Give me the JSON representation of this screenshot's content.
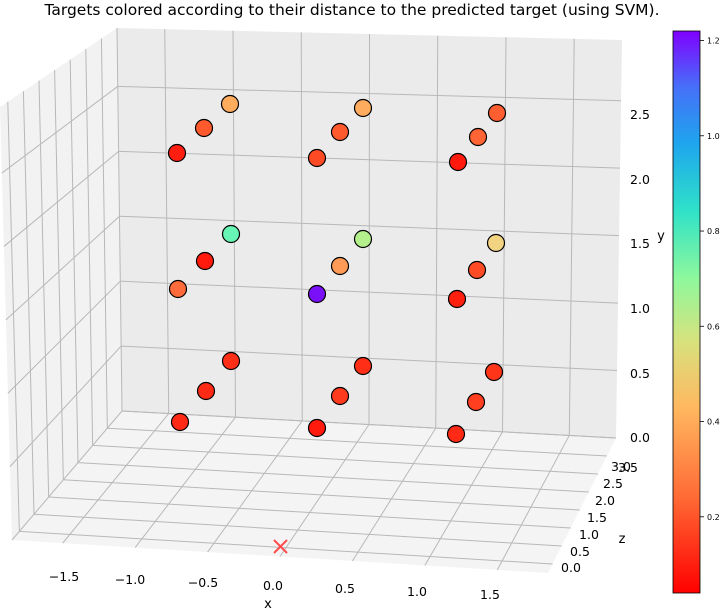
{
  "chart_data": {
    "type": "scatter3d",
    "title": "Targets colored according to their distance to the predicted target (using SVM).",
    "xlabel": "x",
    "ylabel": "y",
    "zlabel": "z",
    "x_ticks": [
      "−1.5",
      "−1.0",
      "−0.5",
      "0.0",
      "0.5",
      "1.0",
      "1.5"
    ],
    "y_ticks": [
      "0.0",
      "0.5",
      "1.0",
      "1.5",
      "2.0",
      "2.5"
    ],
    "z_ticks": [
      "0.0",
      "0.5",
      "1.0",
      "1.5",
      "2.0",
      "2.5",
      "3.0",
      "3.5"
    ],
    "colorbar": {
      "colormap": "rainbow_r",
      "range": [
        0.04,
        1.22
      ],
      "ticks": [
        "0.2",
        "0.4",
        "0.6",
        "0.8",
        "1.0",
        "1.2"
      ]
    },
    "predicted_target": {
      "marker": "x",
      "color": "#ff3333"
    },
    "targets": [
      {
        "x": -1.0,
        "y": 0.0,
        "z": 0.5,
        "d": 0.1,
        "color": "#ff2a15"
      },
      {
        "x": -1.0,
        "y": 0.0,
        "z": 1.5,
        "d": 0.1,
        "color": "#ff2a15"
      },
      {
        "x": -1.0,
        "y": 0.0,
        "z": 2.5,
        "d": 0.11,
        "color": "#ff2e17"
      },
      {
        "x": 0.0,
        "y": 0.0,
        "z": 0.5,
        "d": 0.05,
        "color": "#ff1a0d"
      },
      {
        "x": 0.0,
        "y": 0.0,
        "z": 1.5,
        "d": 0.13,
        "color": "#ff3b1e"
      },
      {
        "x": 0.0,
        "y": 0.0,
        "z": 2.5,
        "d": 0.11,
        "color": "#ff2e17"
      },
      {
        "x": 1.0,
        "y": 0.0,
        "z": 0.5,
        "d": 0.1,
        "color": "#ff2a15"
      },
      {
        "x": 1.0,
        "y": 0.0,
        "z": 1.5,
        "d": 0.14,
        "color": "#ff3f20"
      },
      {
        "x": 1.0,
        "y": 0.0,
        "z": 2.5,
        "d": 0.12,
        "color": "#ff3519"
      },
      {
        "x": -1.0,
        "y": 1.0,
        "z": 0.5,
        "d": 0.2,
        "color": "#ff6b3b"
      },
      {
        "x": -1.0,
        "y": 1.0,
        "z": 1.5,
        "d": 0.05,
        "color": "#ff1a0d"
      },
      {
        "x": -1.0,
        "y": 1.0,
        "z": 2.5,
        "d": 0.64,
        "color": "#66f5b4"
      },
      {
        "x": 0.0,
        "y": 1.0,
        "z": 0.5,
        "d": 1.22,
        "color": "#7a10f7"
      },
      {
        "x": 0.0,
        "y": 1.0,
        "z": 1.5,
        "d": 0.29,
        "color": "#ff9b56"
      },
      {
        "x": 0.0,
        "y": 1.0,
        "z": 2.5,
        "d": 0.5,
        "color": "#b3f08c"
      },
      {
        "x": 1.0,
        "y": 1.0,
        "z": 0.5,
        "d": 0.07,
        "color": "#ff2010"
      },
      {
        "x": 1.0,
        "y": 1.0,
        "z": 1.5,
        "d": 0.15,
        "color": "#ff4a26"
      },
      {
        "x": 1.0,
        "y": 1.0,
        "z": 2.5,
        "d": 0.38,
        "color": "#f2d382"
      },
      {
        "x": -1.0,
        "y": 2.0,
        "z": 0.5,
        "d": 0.06,
        "color": "#ff1e0f"
      },
      {
        "x": -1.0,
        "y": 2.0,
        "z": 1.5,
        "d": 0.16,
        "color": "#ff5a2e"
      },
      {
        "x": -1.0,
        "y": 2.0,
        "z": 2.5,
        "d": 0.3,
        "color": "#ffac5f"
      },
      {
        "x": 0.0,
        "y": 2.0,
        "z": 0.5,
        "d": 0.14,
        "color": "#ff4a26"
      },
      {
        "x": 0.0,
        "y": 2.0,
        "z": 1.5,
        "d": 0.16,
        "color": "#ff5a2e"
      },
      {
        "x": 0.0,
        "y": 2.0,
        "z": 2.5,
        "d": 0.3,
        "color": "#ffac5f"
      },
      {
        "x": 1.0,
        "y": 2.0,
        "z": 0.5,
        "d": 0.05,
        "color": "#ff1a0d"
      },
      {
        "x": 1.0,
        "y": 2.0,
        "z": 1.5,
        "d": 0.18,
        "color": "#ff6434"
      },
      {
        "x": 1.0,
        "y": 2.0,
        "z": 2.5,
        "d": 0.17,
        "color": "#ff5e31"
      }
    ]
  }
}
